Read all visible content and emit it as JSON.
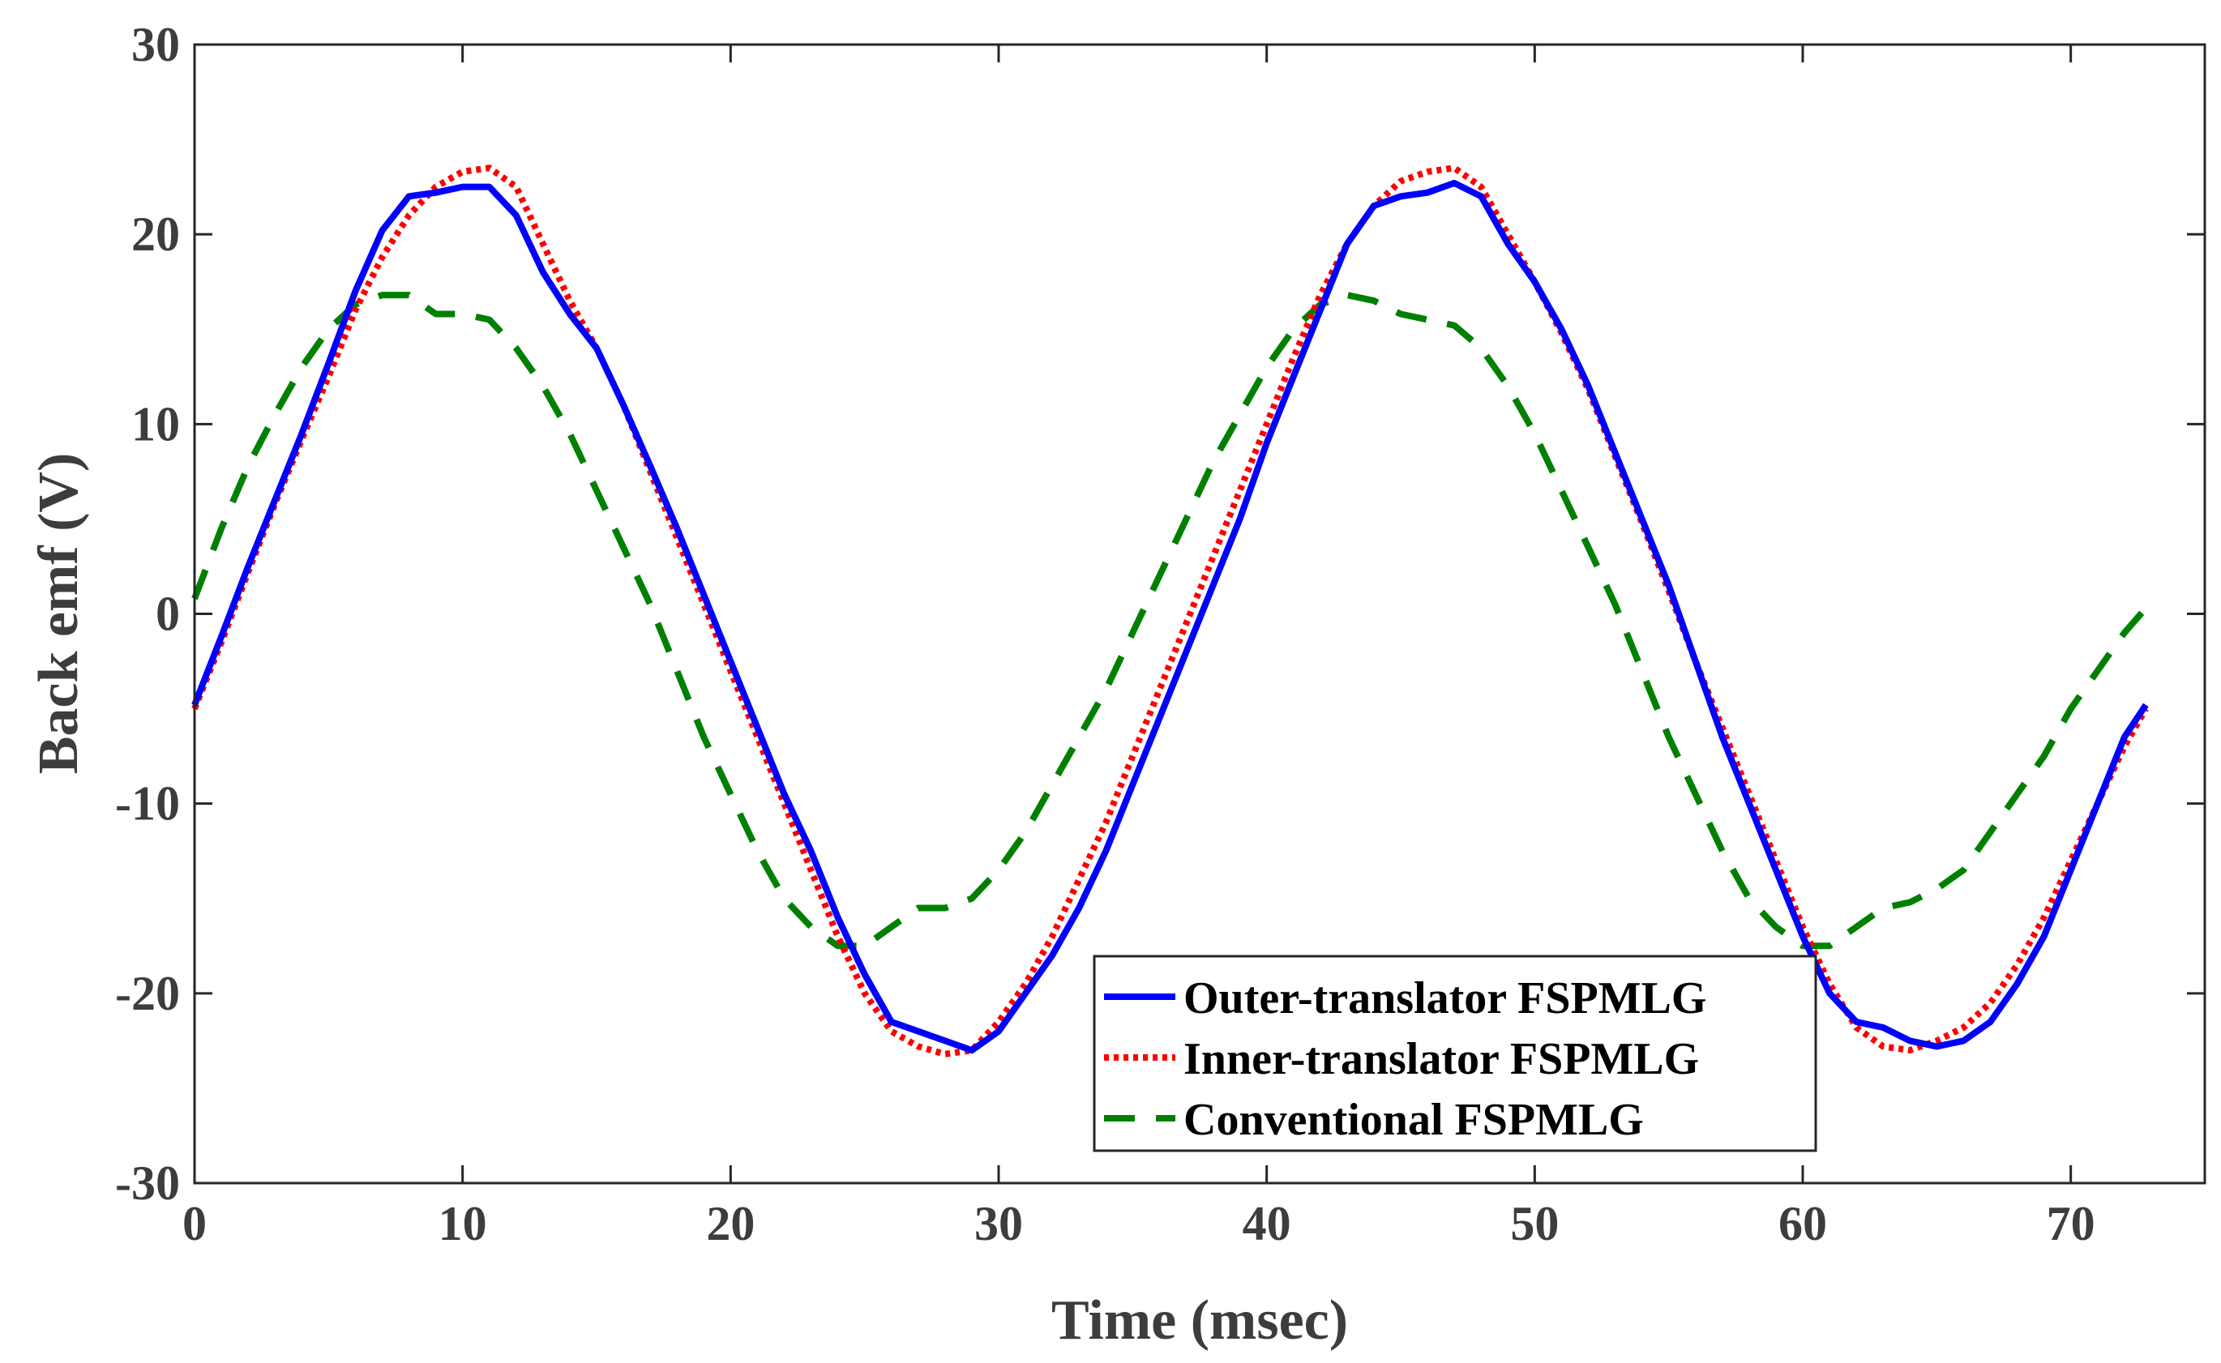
{
  "chart_data": {
    "type": "line",
    "title": "",
    "xlabel": "Time (msec)",
    "ylabel": "Back emf (V)",
    "xlim": [
      0,
      75
    ],
    "ylim": [
      -30,
      30
    ],
    "xticks": [
      0,
      10,
      20,
      30,
      40,
      50,
      60,
      70
    ],
    "yticks": [
      -30,
      -20,
      -10,
      0,
      10,
      20,
      30
    ],
    "xtick_labels": [
      "0",
      "10",
      "20",
      "30",
      "40",
      "50",
      "60",
      "70"
    ],
    "ytick_labels": [
      "-30",
      "-20",
      "-10",
      "0",
      "10",
      "20",
      "30"
    ],
    "grid": false,
    "legend_position": "lower-right",
    "series": [
      {
        "name": "Outer-translator FSPMLG",
        "color": "#0000ff",
        "style": "solid",
        "x": [
          0,
          1,
          2,
          3,
          4,
          5,
          6,
          7,
          8,
          9,
          10,
          11,
          12,
          13,
          14,
          15,
          16,
          17,
          18,
          19,
          20,
          21,
          22,
          23,
          24,
          25,
          26,
          27,
          28,
          29,
          30,
          31,
          32,
          33,
          34,
          35,
          36,
          37,
          38,
          39,
          40,
          41,
          42,
          43,
          44,
          45,
          46,
          47,
          48,
          49,
          50,
          51,
          52,
          53,
          54,
          55,
          56,
          57,
          58,
          59,
          60,
          61,
          62,
          63,
          64,
          65,
          66,
          67,
          68,
          69,
          70,
          71,
          72,
          72.8
        ],
        "y": [
          -4.8,
          -1.2,
          2.5,
          6.0,
          9.5,
          13.2,
          17.0,
          20.2,
          22.0,
          22.2,
          22.5,
          22.5,
          21.0,
          18.0,
          15.8,
          14.0,
          11.0,
          7.8,
          4.5,
          1.0,
          -2.5,
          -6.0,
          -9.5,
          -12.5,
          -16.0,
          -19.0,
          -21.5,
          -22.0,
          -22.5,
          -23.0,
          -22.0,
          -20.0,
          -18.0,
          -15.5,
          -12.5,
          -9.0,
          -5.5,
          -2.0,
          1.5,
          5.0,
          9.0,
          12.5,
          16.0,
          19.5,
          21.5,
          22.0,
          22.2,
          22.7,
          22.0,
          19.5,
          17.5,
          15.0,
          12.0,
          8.5,
          5.0,
          1.5,
          -2.5,
          -6.5,
          -10.0,
          -13.5,
          -17.0,
          -20.0,
          -21.5,
          -21.8,
          -22.5,
          -22.8,
          -22.5,
          -21.5,
          -19.5,
          -17.0,
          -13.5,
          -10.0,
          -6.5,
          -4.8
        ]
      },
      {
        "name": "Inner-translator FSPMLG",
        "color": "#ff0000",
        "style": "dotted",
        "x": [
          0,
          1,
          2,
          3,
          4,
          5,
          6,
          7,
          8,
          9,
          10,
          11,
          12,
          13,
          14,
          15,
          16,
          17,
          18,
          19,
          20,
          21,
          22,
          23,
          24,
          25,
          26,
          27,
          28,
          29,
          30,
          31,
          32,
          33,
          34,
          35,
          36,
          37,
          38,
          39,
          40,
          41,
          42,
          43,
          44,
          45,
          46,
          47,
          48,
          49,
          50,
          51,
          52,
          53,
          54,
          55,
          56,
          57,
          58,
          59,
          60,
          61,
          62,
          63,
          64,
          65,
          66,
          67,
          68,
          69,
          70,
          71,
          72,
          72.8
        ],
        "y": [
          -5.0,
          -1.5,
          2.2,
          5.8,
          9.2,
          12.5,
          16.0,
          18.8,
          21.0,
          22.5,
          23.3,
          23.5,
          22.5,
          19.5,
          16.5,
          14.0,
          11.0,
          7.5,
          4.0,
          0.5,
          -3.0,
          -6.5,
          -10.0,
          -13.5,
          -17.0,
          -20.0,
          -22.0,
          -22.8,
          -23.2,
          -23.0,
          -21.5,
          -19.5,
          -17.0,
          -14.0,
          -11.0,
          -7.5,
          -4.0,
          -0.5,
          3.0,
          6.5,
          10.0,
          13.5,
          16.8,
          19.5,
          21.5,
          22.8,
          23.3,
          23.5,
          22.5,
          20.0,
          17.5,
          14.8,
          11.8,
          8.3,
          4.8,
          1.2,
          -2.5,
          -6.0,
          -9.5,
          -13.0,
          -16.5,
          -19.5,
          -21.8,
          -22.8,
          -23.0,
          -22.5,
          -21.8,
          -20.5,
          -18.5,
          -16.0,
          -13.0,
          -10.0,
          -7.0,
          -5.0
        ]
      },
      {
        "name": "Conventional FSPMLG",
        "color": "#008000",
        "style": "dashed",
        "x": [
          0,
          1,
          2,
          3,
          4,
          5,
          6,
          7,
          8,
          9,
          10,
          11,
          12,
          13,
          14,
          15,
          16,
          17,
          18,
          19,
          20,
          21,
          22,
          23,
          24,
          25,
          26,
          27,
          28,
          29,
          30,
          31,
          32,
          33,
          34,
          35,
          36,
          37,
          38,
          39,
          40,
          41,
          42,
          43,
          44,
          45,
          46,
          47,
          48,
          49,
          50,
          51,
          52,
          53,
          54,
          55,
          56,
          57,
          58,
          59,
          60,
          61,
          62,
          63,
          64,
          65,
          66,
          67,
          68,
          69,
          70,
          71,
          72,
          72.8
        ],
        "y": [
          0.8,
          4.5,
          7.8,
          10.5,
          13.0,
          15.0,
          16.3,
          16.8,
          16.8,
          15.8,
          15.8,
          15.5,
          14.0,
          12.0,
          9.5,
          6.5,
          3.5,
          0.5,
          -3.0,
          -6.5,
          -9.5,
          -12.5,
          -15.0,
          -16.5,
          -17.5,
          -17.5,
          -16.5,
          -15.5,
          -15.5,
          -15.0,
          -13.5,
          -11.5,
          -9.0,
          -6.5,
          -4.0,
          -1.0,
          2.0,
          5.0,
          8.0,
          10.5,
          13.0,
          15.0,
          16.3,
          16.8,
          16.5,
          15.8,
          15.5,
          15.2,
          14.0,
          12.0,
          9.5,
          6.5,
          3.5,
          0.5,
          -3.0,
          -6.5,
          -9.5,
          -12.5,
          -15.0,
          -16.5,
          -17.5,
          -17.5,
          -16.5,
          -15.5,
          -15.2,
          -14.5,
          -13.5,
          -11.5,
          -9.5,
          -7.5,
          -5.0,
          -3.0,
          -1.0,
          0.3
        ]
      }
    ]
  }
}
